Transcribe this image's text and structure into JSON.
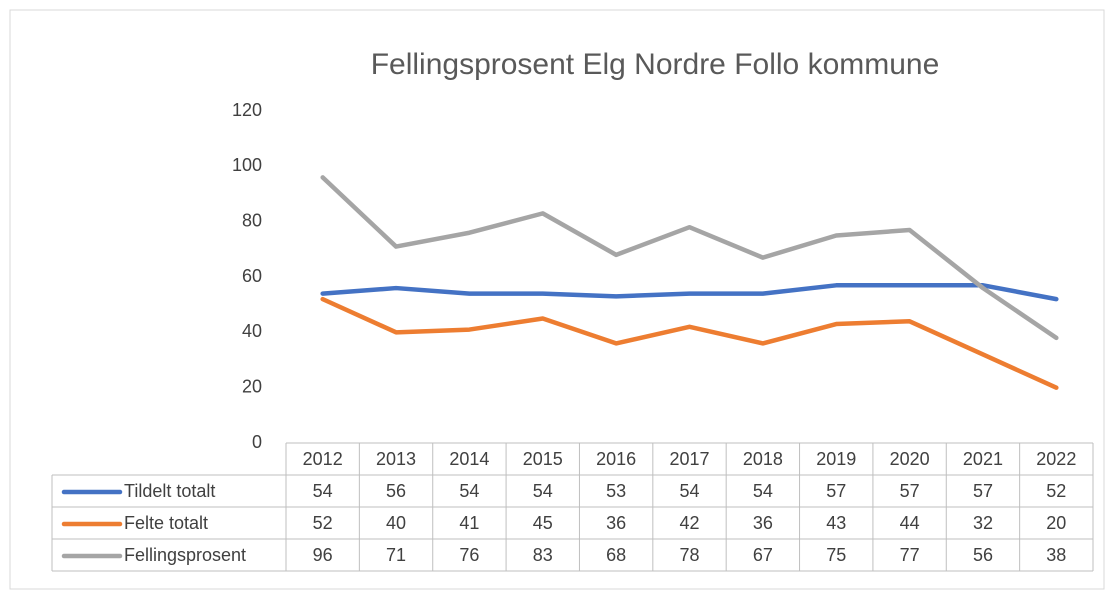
{
  "chart_data": {
    "type": "line",
    "title": "Fellingsprosent Elg Nordre Follo kommune",
    "categories": [
      "2012",
      "2013",
      "2014",
      "2015",
      "2016",
      "2017",
      "2018",
      "2019",
      "2020",
      "2021",
      "2022"
    ],
    "series": [
      {
        "name": "Tildelt totalt",
        "color": "#4472c4",
        "values": [
          54,
          56,
          54,
          54,
          53,
          54,
          54,
          57,
          57,
          57,
          52
        ]
      },
      {
        "name": "Felte totalt",
        "color": "#ed7d31",
        "values": [
          52,
          40,
          41,
          45,
          36,
          42,
          36,
          43,
          44,
          32,
          20
        ]
      },
      {
        "name": "Fellingsprosent",
        "color": "#a5a5a5",
        "values": [
          96,
          71,
          76,
          83,
          68,
          78,
          67,
          75,
          77,
          56,
          38
        ]
      }
    ],
    "ylim": [
      0,
      120
    ],
    "yticks": [
      0,
      20,
      40,
      60,
      80,
      100,
      120
    ],
    "grid": false
  }
}
